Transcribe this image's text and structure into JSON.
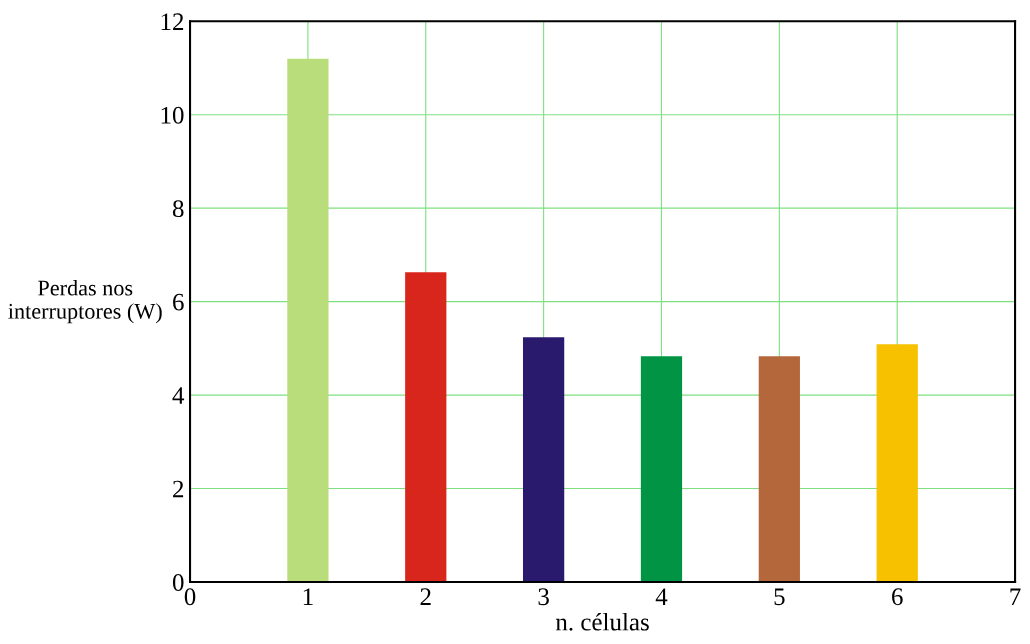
{
  "chart_data": {
    "type": "bar",
    "xlabel": "n. células",
    "ylabel": "Perdas nos\ninterruptores (W)",
    "x": [
      1,
      2,
      3,
      4,
      5,
      6
    ],
    "values": [
      11.2,
      6.63,
      5.24,
      4.83,
      4.83,
      5.09
    ],
    "colors": [
      "#b9dd7a",
      "#d9261c",
      "#2a1a6e",
      "#009444",
      "#b5673c",
      "#f7c100"
    ],
    "xlim": [
      0,
      7
    ],
    "xticks": [
      0,
      1,
      2,
      3,
      4,
      5,
      6,
      7
    ],
    "ylim": [
      0,
      12
    ],
    "yticks": [
      0,
      2,
      4,
      6,
      8,
      10,
      12
    ],
    "grid": true
  }
}
